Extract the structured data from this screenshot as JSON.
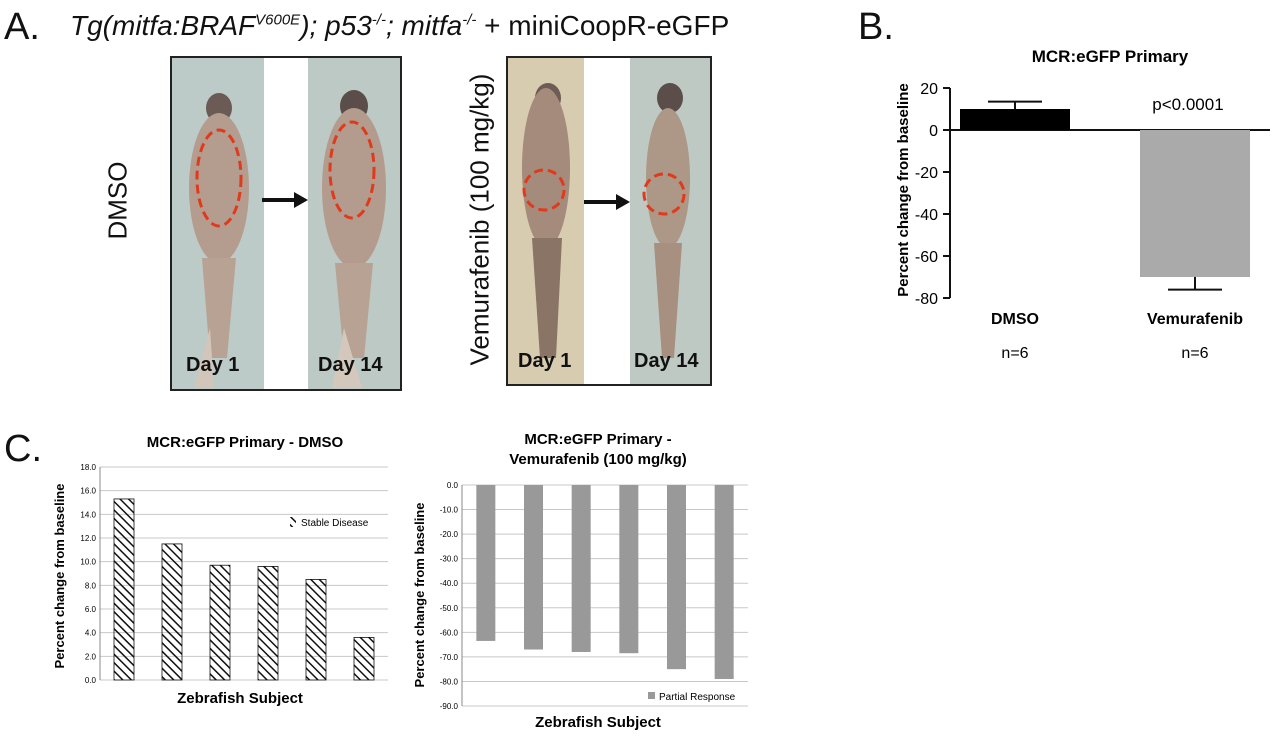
{
  "panel_a": {
    "letter": "A.",
    "title_prefix": "Tg(mitfa:BRAF",
    "title_sup1": "V600E",
    "title_mid1": "); p53",
    "title_sup2": "-/-",
    "title_mid2": "; mitfa",
    "title_sup3": "-/-",
    "title_suffix": "+ miniCoopR-eGFP",
    "dmso_label": "DMSO",
    "vem_label": "Vemurafenib (100 mg/kg)",
    "day1": "Day 1",
    "day14": "Day 14"
  },
  "panel_b": {
    "letter": "B."
  },
  "panel_c": {
    "letter": "C."
  },
  "chart_data": [
    {
      "id": "B",
      "type": "bar",
      "title": "MCR:eGFP Primary",
      "ylabel": "Percent change from baseline",
      "categories": [
        "DMSO",
        "Vemurafenib"
      ],
      "values": [
        10,
        -70
      ],
      "error": [
        3.5,
        6
      ],
      "ylim": [
        -80,
        20
      ],
      "yticks": [
        "20",
        "0",
        "-20",
        "-40",
        "-60",
        "-80"
      ],
      "n_labels": [
        "n=6",
        "n=6"
      ],
      "annotation": "p<0.0001",
      "colors": [
        "#000000",
        "#aaaaaa"
      ]
    },
    {
      "id": "C-left",
      "type": "bar",
      "title": "MCR:eGFP Primary - DMSO",
      "xlabel": "Zebrafish Subject",
      "ylabel": "Percent change from baseline",
      "values": [
        15.3,
        11.5,
        9.7,
        9.6,
        8.5,
        3.6
      ],
      "ylim": [
        0,
        18
      ],
      "yticks": [
        "0.0",
        "2.0",
        "4.0",
        "6.0",
        "8.0",
        "10.0",
        "12.0",
        "14.0",
        "16.0",
        "18.0"
      ],
      "legend": "Stable Disease",
      "legend_position": "top-right",
      "fill": "hatched"
    },
    {
      "id": "C-right",
      "type": "bar",
      "title_line1": "MCR:eGFP Primary -",
      "title_line2": "Vemurafenib (100 mg/kg)",
      "xlabel": "Zebrafish Subject",
      "ylabel": "Percent change from baseline",
      "values": [
        -63.5,
        -67,
        -68,
        -68.5,
        -75,
        -79
      ],
      "ylim": [
        -90,
        0
      ],
      "yticks": [
        "0.0",
        "-10.0",
        "-20.0",
        "-30.0",
        "-40.0",
        "-50.0",
        "-60.0",
        "-70.0",
        "-80.0",
        "-90.0"
      ],
      "legend": "Partial Response",
      "legend_position": "bottom-right",
      "color": "#999999"
    }
  ]
}
